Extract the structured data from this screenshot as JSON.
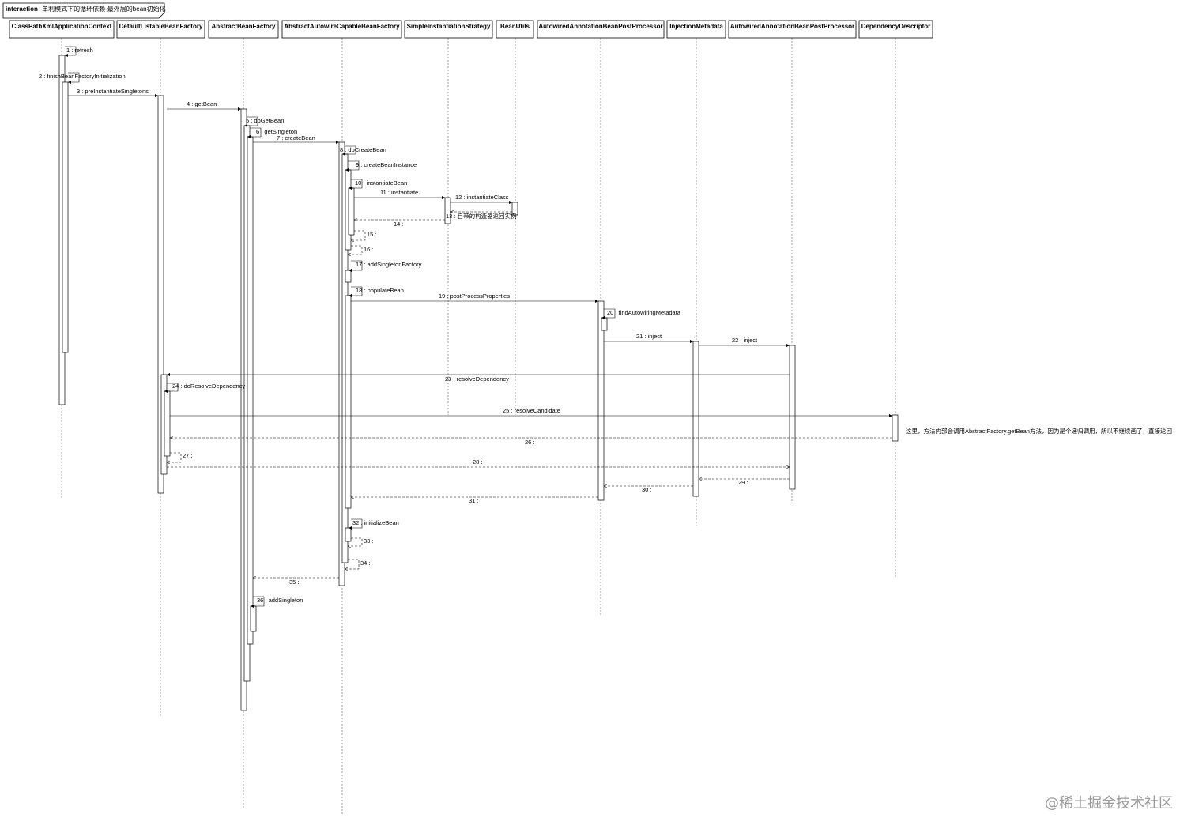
{
  "frame": {
    "keyword": "interaction",
    "title": "单利模式下的循环依赖-最外层的bean初始化"
  },
  "lifelines": [
    {
      "id": "cpx",
      "name": "ClassPathXmlApplicationContext"
    },
    {
      "id": "dlb",
      "name": "DefaultListableBeanFactory"
    },
    {
      "id": "abf",
      "name": "AbstractBeanFactory"
    },
    {
      "id": "aacbf",
      "name": "AbstractAutowireCapableBeanFactory"
    },
    {
      "id": "sis",
      "name": "SimpleInstantiationStrategy"
    },
    {
      "id": "bu",
      "name": "BeanUtils"
    },
    {
      "id": "aabpp1",
      "name": "AutowiredAnnotationBeanPostProcessor"
    },
    {
      "id": "im",
      "name": "InjectionMetadata"
    },
    {
      "id": "aabpp2",
      "name": "AutowiredAnnotationBeanPostProcessor"
    },
    {
      "id": "dd",
      "name": "DependencyDescriptor"
    }
  ],
  "messages": [
    {
      "label": "1 : refresh"
    },
    {
      "label": "2 : finishBeanFactoryInitialization"
    },
    {
      "label": "3 : preInstantiateSingletons"
    },
    {
      "label": "4 : getBean"
    },
    {
      "label": "5 : doGetBean"
    },
    {
      "label": "6 : getSingleton"
    },
    {
      "label": "7 : createBean"
    },
    {
      "label": "8 : doCreateBean"
    },
    {
      "label": "9 : createBeanInstance"
    },
    {
      "label": "10 : instantiateBean"
    },
    {
      "label": "11 : instantiate"
    },
    {
      "label": "12 : instantiateClass"
    },
    {
      "label": "13 : 自带的构造器返回实例"
    },
    {
      "label": "14 :"
    },
    {
      "label": "15 :"
    },
    {
      "label": "16 :"
    },
    {
      "label": "17 : addSingletonFactory"
    },
    {
      "label": "18 : populateBean"
    },
    {
      "label": "19 : postProcessProperties"
    },
    {
      "label": "20 : findAutowiringMetadata"
    },
    {
      "label": "21 : inject"
    },
    {
      "label": "22 : inject"
    },
    {
      "label": "23 : resolveDependency"
    },
    {
      "label": "24 : doResolveDependency"
    },
    {
      "label": "25 : resolveCandidate"
    },
    {
      "label": "26 :"
    },
    {
      "label": "27 :"
    },
    {
      "label": "28 :"
    },
    {
      "label": "29 :"
    },
    {
      "label": "30 :"
    },
    {
      "label": "31 :"
    },
    {
      "label": "32 : initializeBean"
    },
    {
      "label": "33 :"
    },
    {
      "label": "34 :"
    },
    {
      "label": "35 :"
    },
    {
      "label": "36 : addSingleton"
    }
  ],
  "note": "这里，方法内部会调用AbstractFactory.getBean方法，因为是个递归调用，所以不继续画了，直接返回",
  "watermark": "@稀土掘金技术社区"
}
